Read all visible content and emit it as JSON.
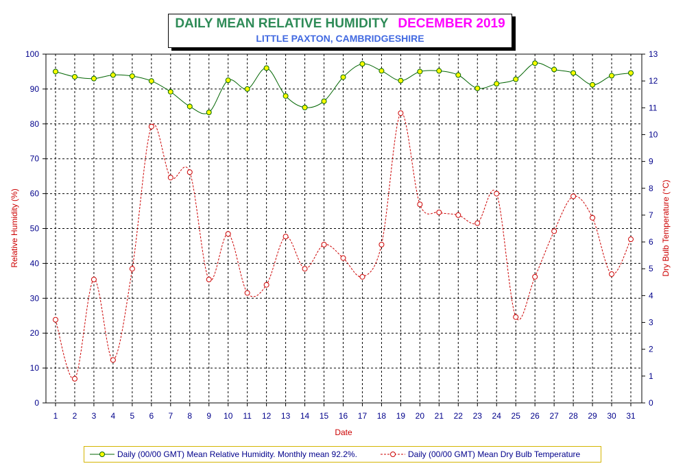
{
  "chart_data": {
    "type": "line",
    "title": "DAILY MEAN RELATIVE HUMIDITY",
    "title_month": "DECEMBER 2019",
    "subtitle": "LITTLE PAXTON, CAMBRIDGESHIRE",
    "xlabel": "Date",
    "ylabel_left": "Relative Humidity (%)",
    "ylabel_right": "Dry Bulb Temperature (°C)",
    "x": [
      1,
      2,
      3,
      4,
      5,
      6,
      7,
      8,
      9,
      10,
      11,
      12,
      13,
      14,
      15,
      16,
      17,
      18,
      19,
      20,
      21,
      22,
      23,
      24,
      25,
      26,
      27,
      28,
      29,
      30,
      31
    ],
    "ylim_left": [
      0,
      100
    ],
    "yticks_left": [
      0,
      10,
      20,
      30,
      40,
      50,
      60,
      70,
      80,
      90,
      100
    ],
    "ylim_right": [
      0,
      13
    ],
    "yticks_right": [
      0,
      1,
      2,
      3,
      4,
      5,
      6,
      7,
      8,
      9,
      10,
      11,
      12,
      13
    ],
    "grid": true,
    "legend_position": "bottom",
    "series": [
      {
        "name": "Daily (00/00 GMT) Mean Relative Humidity. Monthly mean 92.2%.",
        "axis": "left",
        "color": "#006400",
        "marker_color": "#ffff00",
        "line_style": "solid",
        "values": [
          95,
          93.5,
          93,
          94,
          93.7,
          92.3,
          89.2,
          85,
          83.3,
          92.5,
          90,
          96,
          88,
          84.7,
          86.5,
          93.4,
          97.2,
          95.2,
          92.4,
          95,
          95.2,
          94,
          90.2,
          91.5,
          92.8,
          97.4,
          95.6,
          94.6,
          91.2,
          93.8,
          94.6
        ]
      },
      {
        "name": "Daily (00/00 GMT) Mean Dry Bulb Temperature",
        "axis": "right",
        "color": "#cc0000",
        "marker_color": "#ffffff",
        "line_style": "dashed",
        "values": [
          3.1,
          0.9,
          4.6,
          1.6,
          5.0,
          10.3,
          8.4,
          8.6,
          4.6,
          6.3,
          4.1,
          4.4,
          6.2,
          5.0,
          5.9,
          5.4,
          4.7,
          5.9,
          10.8,
          7.4,
          7.1,
          7.0,
          6.7,
          7.8,
          3.2,
          4.7,
          6.4,
          7.7,
          6.9,
          4.8,
          6.1
        ]
      }
    ]
  }
}
